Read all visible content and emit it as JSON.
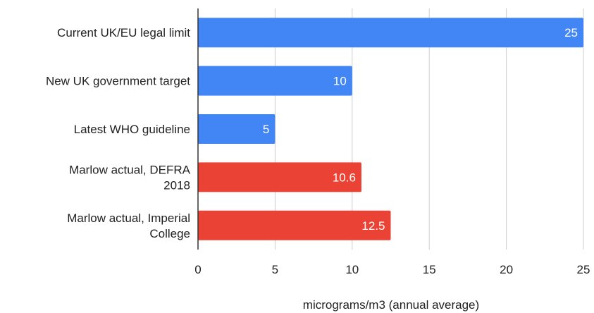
{
  "chart_data": {
    "type": "bar",
    "orientation": "horizontal",
    "categories": [
      [
        "Current UK/EU legal limit"
      ],
      [
        "New UK government target"
      ],
      [
        "Latest WHO guideline"
      ],
      [
        "Marlow actual, DEFRA",
        "2018"
      ],
      [
        "Marlow actual, Imperial",
        "College"
      ]
    ],
    "values": [
      25,
      10,
      5,
      10.6,
      12.5
    ],
    "data_labels": [
      "25",
      "10",
      "5",
      "10.6",
      "12.5"
    ],
    "bar_colors": [
      "#4285f4",
      "#4285f4",
      "#4285f4",
      "#ea4335",
      "#ea4335"
    ],
    "xlim": [
      0,
      25
    ],
    "xticks": [
      0,
      5,
      10,
      15,
      20,
      25
    ],
    "xlabel": "micrograms/m3 (annual average)",
    "ylabel": "",
    "title": "",
    "grid": "vertical",
    "legend": "none"
  }
}
